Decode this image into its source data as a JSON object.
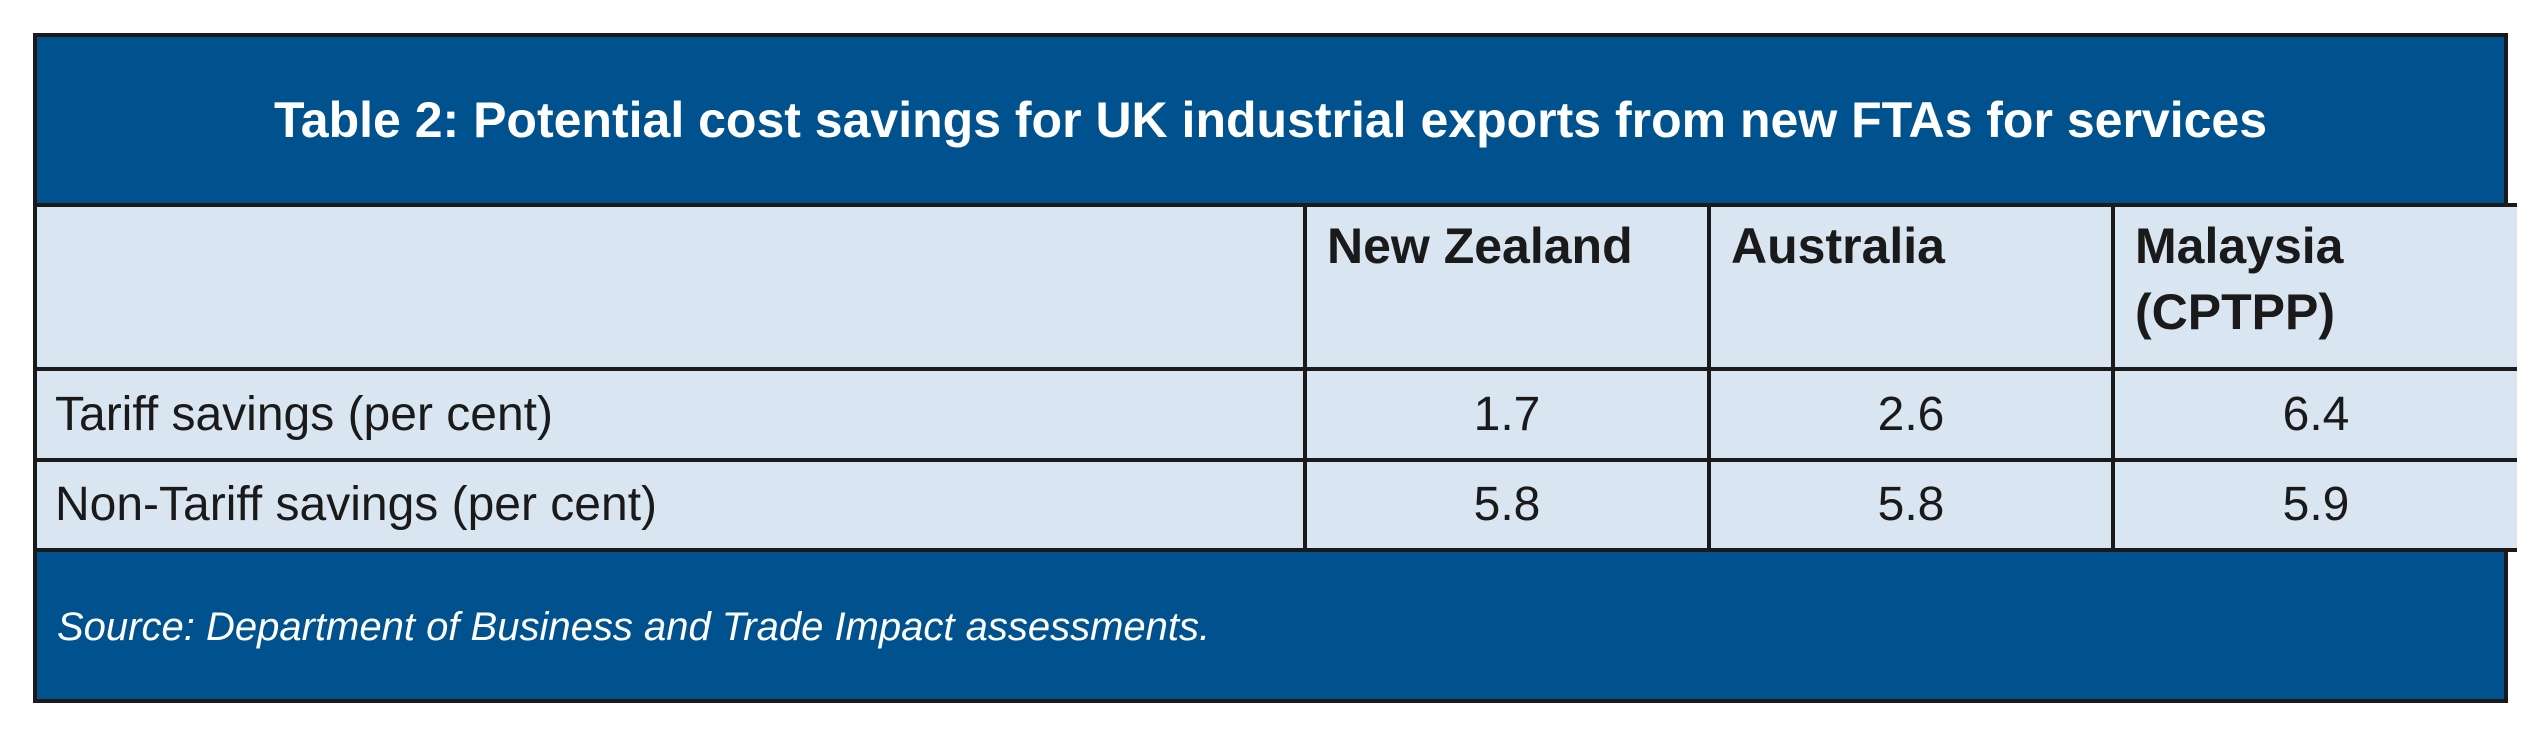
{
  "table": {
    "title": "Table 2: Potential cost savings for UK industrial exports from new FTAs for services",
    "columns": [
      "",
      "New Zealand",
      "Australia",
      "Malaysia (CPTPP)"
    ],
    "column_lines": {
      "malaysia_line1": "Malaysia",
      "malaysia_line2": "(CPTPP)"
    },
    "rows": [
      {
        "label": "Tariff savings (per cent)",
        "values": [
          "1.7",
          "2.6",
          "6.4"
        ]
      },
      {
        "label": "Non-Tariff savings (per cent)",
        "values": [
          "5.8",
          "5.8",
          "5.9"
        ]
      }
    ],
    "source": "Source: Department of Business and Trade Impact assessments."
  },
  "colors": {
    "header_band": "#00528f",
    "cell_background": "#d9e5f0",
    "border": "#1a1a1a",
    "title_text": "#ffffff"
  }
}
